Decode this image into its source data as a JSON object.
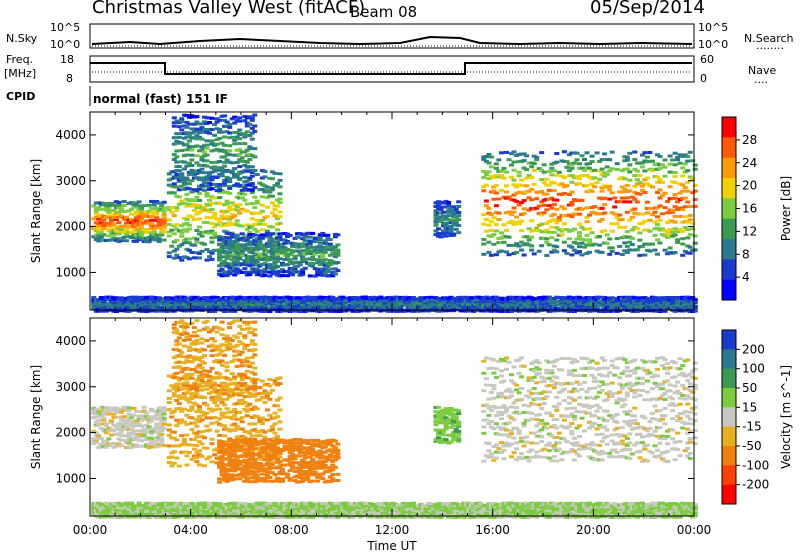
{
  "header": {
    "station": "Christmas Valley West (fitACF)",
    "beam": "Beam 08",
    "date": "05/Sep/2014"
  },
  "top_panels": {
    "nsky_label": "N.Sky",
    "nsky_ticks": [
      "10^5",
      "10^0"
    ],
    "nsearch_label": "N.Search",
    "nsearch_dots": "........",
    "freq_label": "Freq.",
    "freq_unit": "[MHz]",
    "freq_ticks": [
      "18",
      "8"
    ],
    "nave_ticks": [
      "60",
      "0"
    ],
    "nave_label": "Nave",
    "nave_dots": "....",
    "cpid_label": "CPID",
    "cpid_text": "normal (fast) 151 IF"
  },
  "chart_data": [
    {
      "type": "heatmap",
      "panel": "power",
      "ylabel": "Slant Range [km]",
      "xlabel": "",
      "ylim": [
        180,
        4500
      ],
      "xlim": [
        0,
        24
      ],
      "yticks": [
        "4000",
        "3000",
        "2000",
        "1000"
      ],
      "colorbar_label": "Power [dB]",
      "colorbar_ticks": [
        "28",
        "24",
        "20",
        "16",
        "12",
        "8",
        "4"
      ],
      "colorbar_colors": [
        "#ff0000",
        "#ff5a00",
        "#ff9a00",
        "#f0d000",
        "#7ccc40",
        "#3a9a52",
        "#2a7a8c",
        "#1a3ccc",
        "#0000ff"
      ],
      "features": [
        {
          "t0": 0.0,
          "t1": 2.9,
          "r0": 1700,
          "r1": 2600,
          "peak": 28
        },
        {
          "t0": 3.0,
          "t1": 7.5,
          "r0": 1300,
          "r1": 3300,
          "peak": 20
        },
        {
          "t0": 3.2,
          "t1": 6.5,
          "r0": 2800,
          "r1": 4500,
          "peak": 12
        },
        {
          "t0": 5.0,
          "t1": 9.8,
          "r0": 950,
          "r1": 1900,
          "peak": 12
        },
        {
          "t0": 13.6,
          "t1": 14.6,
          "r0": 1800,
          "r1": 2600,
          "peak": 10
        },
        {
          "t0": 15.5,
          "t1": 24.0,
          "r0": 1400,
          "r1": 3700,
          "peak": 28
        },
        {
          "t0": 0.0,
          "t1": 24.0,
          "r0": 180,
          "r1": 500,
          "peak": 8
        }
      ]
    },
    {
      "type": "heatmap",
      "panel": "velocity",
      "ylabel": "Slant Range [km]",
      "xlabel": "Time UT",
      "ylim": [
        180,
        4500
      ],
      "xlim": [
        0,
        24
      ],
      "yticks": [
        "4000",
        "3000",
        "2000",
        "1000"
      ],
      "xticks": [
        "00:00",
        "04:00",
        "08:00",
        "12:00",
        "16:00",
        "20:00",
        "00:00"
      ],
      "colorbar_label": "Velocity [m s^-1]",
      "colorbar_ticks": [
        "200",
        "100",
        "50",
        "15",
        "-15",
        "-50",
        "-100",
        "-200"
      ],
      "colorbar_colors": [
        "#1a3ccc",
        "#2a7a8c",
        "#3a9a52",
        "#7ccc40",
        "#c8c8c0",
        "#e8b020",
        "#f08010",
        "#ff4000",
        "#ff0000"
      ],
      "features": [
        {
          "t0": 0.0,
          "t1": 2.9,
          "r0": 1700,
          "r1": 2600,
          "vel": 0
        },
        {
          "t0": 3.0,
          "t1": 7.5,
          "r0": 1300,
          "r1": 3300,
          "vel": -40
        },
        {
          "t0": 3.2,
          "t1": 6.5,
          "r0": 2800,
          "r1": 4500,
          "vel": -45
        },
        {
          "t0": 5.0,
          "t1": 9.8,
          "r0": 950,
          "r1": 1900,
          "vel": -80
        },
        {
          "t0": 13.6,
          "t1": 14.6,
          "r0": 1800,
          "r1": 2600,
          "vel": 40
        },
        {
          "t0": 15.5,
          "t1": 24.0,
          "r0": 1400,
          "r1": 3700,
          "vel": 0
        },
        {
          "t0": 0.0,
          "t1": 24.0,
          "r0": 180,
          "r1": 500,
          "vel": 20
        }
      ]
    }
  ]
}
